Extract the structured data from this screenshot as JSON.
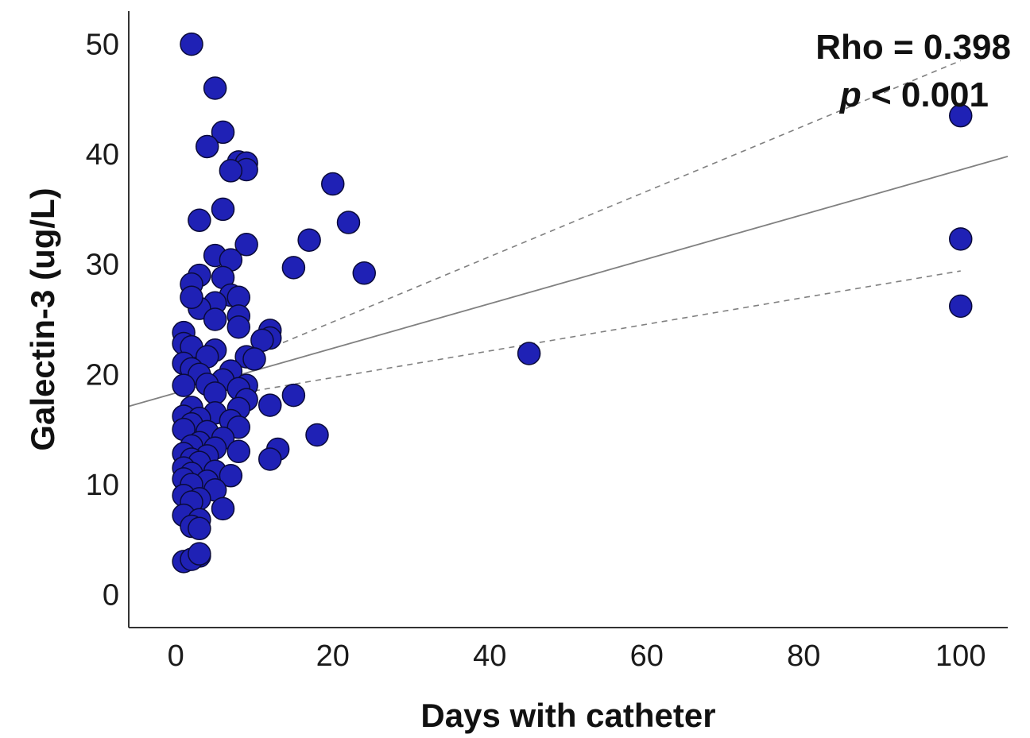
{
  "chart_data": {
    "type": "scatter",
    "xlabel": "Days with catheter",
    "ylabel": "Galectin-3 (ug/L)",
    "xlim": [
      -6,
      106
    ],
    "ylim": [
      -3,
      53
    ],
    "x_ticks": [
      "0",
      "20",
      "40",
      "60",
      "80",
      "100"
    ],
    "y_ticks": [
      "0",
      "10",
      "20",
      "30",
      "40",
      "50"
    ],
    "grid": false,
    "annotation": {
      "rho_text": "Rho = 0.398",
      "p_symbol": "p",
      "p_rest": " < 0.001"
    },
    "fit_line": {
      "x": [
        -6,
        106
      ],
      "y": [
        17.1,
        39.8
      ]
    },
    "ci_upper": {
      "x": [
        10,
        100
      ],
      "y": [
        21.8,
        48.5
      ]
    },
    "ci_lower": {
      "x": [
        10,
        100
      ],
      "y": [
        18.5,
        29.4
      ]
    },
    "marker_color": "#1f21b5",
    "marker_edge": "#0a0a3a",
    "line_color": "#808080",
    "points": [
      [
        2,
        50
      ],
      [
        5,
        46
      ],
      [
        6,
        42
      ],
      [
        4,
        40.7
      ],
      [
        8,
        39.3
      ],
      [
        9,
        39.2
      ],
      [
        9,
        38.6
      ],
      [
        7,
        38.5
      ],
      [
        20,
        37.3
      ],
      [
        6,
        35
      ],
      [
        3,
        34
      ],
      [
        22,
        33.8
      ],
      [
        17,
        32.2
      ],
      [
        9,
        31.8
      ],
      [
        5,
        30.8
      ],
      [
        7,
        30.4
      ],
      [
        15,
        29.7
      ],
      [
        24,
        29.2
      ],
      [
        3,
        29
      ],
      [
        6,
        28.8
      ],
      [
        2,
        28.2
      ],
      [
        7,
        27.2
      ],
      [
        8,
        27
      ],
      [
        5,
        26.5
      ],
      [
        3,
        26
      ],
      [
        2,
        27
      ],
      [
        8,
        25.3
      ],
      [
        5,
        25
      ],
      [
        8,
        24.3
      ],
      [
        1,
        23.8
      ],
      [
        12,
        24
      ],
      [
        12,
        23.3
      ],
      [
        11,
        23.1
      ],
      [
        1,
        22.8
      ],
      [
        2,
        22.5
      ],
      [
        5,
        22.2
      ],
      [
        4,
        21.6
      ],
      [
        9,
        21.6
      ],
      [
        10,
        21.4
      ],
      [
        45,
        21.9
      ],
      [
        1,
        21
      ],
      [
        2,
        20.5
      ],
      [
        7,
        20.3
      ],
      [
        3,
        20
      ],
      [
        6,
        19.5
      ],
      [
        4,
        19.1
      ],
      [
        1,
        19
      ],
      [
        9,
        19
      ],
      [
        8,
        18.7
      ],
      [
        5,
        18.3
      ],
      [
        15,
        18.1
      ],
      [
        9,
        17.7
      ],
      [
        12,
        17.2
      ],
      [
        2,
        17
      ],
      [
        8,
        16.9
      ],
      [
        5,
        16.5
      ],
      [
        1,
        16.2
      ],
      [
        3,
        16
      ],
      [
        7,
        15.8
      ],
      [
        2,
        15.5
      ],
      [
        8,
        15.2
      ],
      [
        1,
        15
      ],
      [
        4,
        14.8
      ],
      [
        18,
        14.5
      ],
      [
        6,
        14.2
      ],
      [
        3,
        13.8
      ],
      [
        2,
        13.5
      ],
      [
        5,
        13.3
      ],
      [
        13,
        13.2
      ],
      [
        8,
        13
      ],
      [
        1,
        12.8
      ],
      [
        4,
        12.6
      ],
      [
        2,
        12.3
      ],
      [
        12,
        12.3
      ],
      [
        3,
        12
      ],
      [
        1,
        11.5
      ],
      [
        5,
        11.2
      ],
      [
        2,
        11
      ],
      [
        7,
        10.8
      ],
      [
        1,
        10.5
      ],
      [
        4,
        10.3
      ],
      [
        2,
        10
      ],
      [
        5,
        9.5
      ],
      [
        1,
        9
      ],
      [
        3,
        8.7
      ],
      [
        2,
        8.4
      ],
      [
        6,
        7.8
      ],
      [
        1,
        7.2
      ],
      [
        3,
        6.8
      ],
      [
        2,
        6.2
      ],
      [
        3,
        6
      ],
      [
        1,
        3
      ],
      [
        3,
        3.5
      ],
      [
        2,
        3.2
      ],
      [
        3,
        3.7
      ],
      [
        100,
        43.5
      ],
      [
        100,
        32.3
      ],
      [
        100,
        26.2
      ]
    ]
  }
}
